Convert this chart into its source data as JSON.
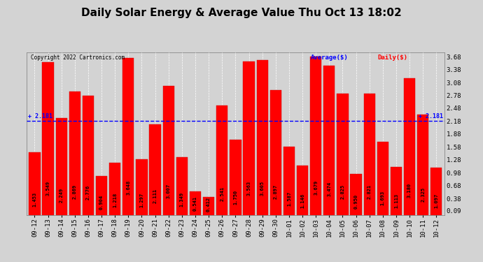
{
  "title": "Daily Solar Energy & Average Value Thu Oct 13 18:02",
  "copyright": "Copyright 2022 Cartronics.com",
  "legend_avg": "Average($)",
  "legend_daily": "Daily($)",
  "average_value": 2.181,
  "categories": [
    "09-12",
    "09-13",
    "09-14",
    "09-15",
    "09-16",
    "09-17",
    "09-18",
    "09-19",
    "09-20",
    "09-21",
    "09-22",
    "09-23",
    "09-24",
    "09-25",
    "09-26",
    "09-27",
    "09-28",
    "09-29",
    "09-30",
    "10-01",
    "10-02",
    "10-03",
    "10-04",
    "10-05",
    "10-06",
    "10-07",
    "10-08",
    "10-09",
    "10-10",
    "10-11",
    "10-12"
  ],
  "values": [
    1.453,
    3.549,
    2.249,
    2.869,
    2.776,
    0.904,
    1.218,
    3.648,
    1.297,
    2.111,
    3.007,
    1.349,
    0.541,
    0.412,
    2.541,
    1.75,
    3.563,
    3.605,
    2.897,
    1.587,
    1.146,
    3.679,
    3.474,
    2.825,
    0.95,
    2.821,
    1.693,
    1.113,
    3.18,
    2.325,
    1.097
  ],
  "bar_color": "#ff0000",
  "bar_edge_color": "#cc0000",
  "avg_line_color": "#0000ff",
  "avg_label_color": "#0000ff",
  "title_fontsize": 11,
  "tick_fontsize": 6.5,
  "ylim_max": 3.78,
  "yticks": [
    0.09,
    0.38,
    0.68,
    0.98,
    1.28,
    1.58,
    1.88,
    2.18,
    2.48,
    2.78,
    3.08,
    3.38,
    3.68
  ],
  "background_color": "#d3d3d3",
  "plot_bg_color": "#d3d3d3",
  "grid_color": "#ffffff",
  "avg_label_text": "+ 2.181"
}
